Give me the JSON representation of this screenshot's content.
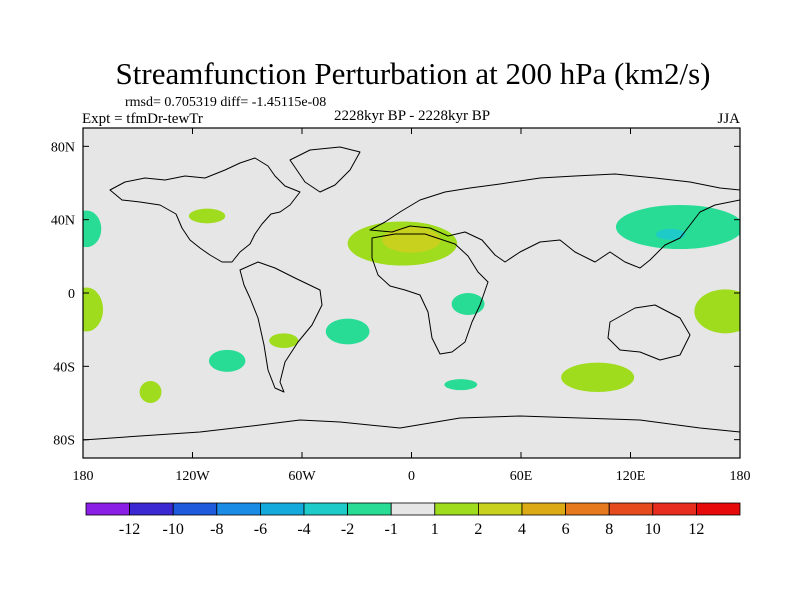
{
  "chart_data": {
    "type": "contour-map",
    "title": "Streamfunction Perturbation at 200 hPa (km2/s)",
    "stats": "rmsd= 0.705319 diff= -1.45115e-08",
    "left_label": "Expt = tfmDr-tewTr",
    "center_label": "2228kyr BP - 2228kyr BP",
    "right_label": "JJA",
    "xlim": [
      -180,
      180
    ],
    "ylim": [
      -90,
      90
    ],
    "x_ticks": [
      {
        "value": -180,
        "label": "180"
      },
      {
        "value": -120,
        "label": "120W"
      },
      {
        "value": -60,
        "label": "60W"
      },
      {
        "value": 0,
        "label": "0"
      },
      {
        "value": 60,
        "label": "60E"
      },
      {
        "value": 120,
        "label": "120E"
      },
      {
        "value": 180,
        "label": "180"
      }
    ],
    "y_ticks": [
      {
        "value": 80,
        "label": "80N"
      },
      {
        "value": 40,
        "label": "40N"
      },
      {
        "value": 0,
        "label": "0"
      },
      {
        "value": -40,
        "label": "40S"
      },
      {
        "value": -80,
        "label": "80S"
      }
    ],
    "colorbar": {
      "levels": [
        "-12",
        "-10",
        "-8",
        "-6",
        "-4",
        "-2",
        "-1",
        "1",
        "2",
        "4",
        "6",
        "8",
        "10",
        "12"
      ],
      "colors": [
        "#8a1ee6",
        "#3c28d2",
        "#1e5adc",
        "#1a8ce6",
        "#14aadc",
        "#1ecbc8",
        "#28dc96",
        "#e6e6e6",
        "#a0dc1e",
        "#c8d21e",
        "#dcaa14",
        "#e6781e",
        "#e64b1e",
        "#e62d1e",
        "#e60a0a"
      ]
    },
    "regions": [
      {
        "name": "north-africa-positive",
        "lon": -5,
        "lat": 27,
        "rlon": 30,
        "rlat": 12,
        "color": "#a0dc1e"
      },
      {
        "name": "north-africa-core",
        "lon": 0,
        "lat": 29,
        "rlon": 16,
        "rlat": 7,
        "color": "#c8d21e"
      },
      {
        "name": "east-asia-negative",
        "lon": 147,
        "lat": 36,
        "rlon": 35,
        "rlat": 12,
        "color": "#28dc96"
      },
      {
        "name": "east-asia-core",
        "lon": 142,
        "lat": 32,
        "rlon": 8,
        "rlat": 3,
        "color": "#1ecbc8"
      },
      {
        "name": "east-pacific-negative",
        "lon": -178,
        "lat": 35,
        "rlon": 8,
        "rlat": 10,
        "color": "#28dc96"
      },
      {
        "name": "mexico-positive",
        "lon": -112,
        "lat": 42,
        "rlon": 10,
        "rlat": 4,
        "color": "#a0dc1e"
      },
      {
        "name": "equatorial-pacific-positive",
        "lon": -178,
        "lat": -9,
        "rlon": 9,
        "rlat": 12,
        "color": "#a0dc1e"
      },
      {
        "name": "west-pacific-positive",
        "lon": 172,
        "lat": -10,
        "rlon": 17,
        "rlat": 12,
        "color": "#a0dc1e"
      },
      {
        "name": "east-africa-negative",
        "lon": 31,
        "lat": -6,
        "rlon": 9,
        "rlat": 6,
        "color": "#28dc96"
      },
      {
        "name": "south-atlantic-negative",
        "lon": -35,
        "lat": -21,
        "rlon": 12,
        "rlat": 7,
        "color": "#28dc96"
      },
      {
        "name": "south-america-positive",
        "lon": -70,
        "lat": -26,
        "rlon": 8,
        "rlat": 4,
        "color": "#a0dc1e"
      },
      {
        "name": "south-pacific-negative",
        "lon": -101,
        "lat": -37,
        "rlon": 10,
        "rlat": 6,
        "color": "#28dc96"
      },
      {
        "name": "far-south-pacific-positive",
        "lon": -143,
        "lat": -54,
        "rlon": 6,
        "rlat": 6,
        "color": "#a0dc1e"
      },
      {
        "name": "indian-ocean-positive",
        "lon": 102,
        "lat": -46,
        "rlon": 20,
        "rlat": 8,
        "color": "#a0dc1e"
      },
      {
        "name": "south-africa-negative",
        "lon": 27,
        "lat": -50,
        "rlon": 9,
        "rlat": 3,
        "color": "#28dc96"
      }
    ]
  }
}
